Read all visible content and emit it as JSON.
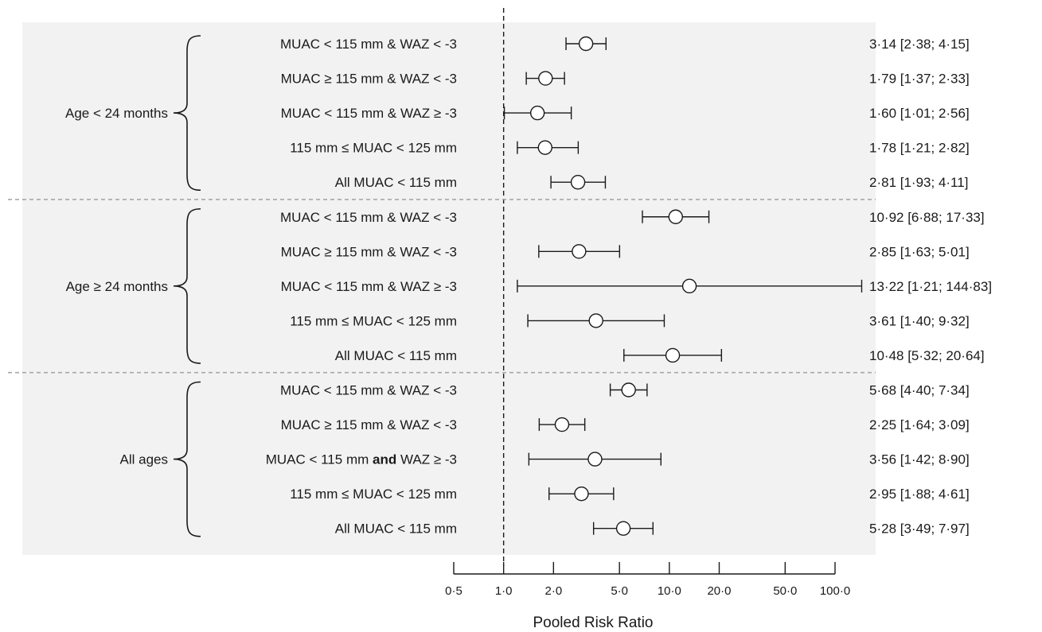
{
  "chart_data": {
    "type": "forest",
    "xlabel": "Pooled Risk Ratio",
    "x_scale": "log",
    "xlim": [
      0.5,
      100
    ],
    "ticks": [
      {
        "v": 0.5,
        "label": "0·5"
      },
      {
        "v": 1,
        "label": "1·0"
      },
      {
        "v": 2,
        "label": "2·0"
      },
      {
        "v": 5,
        "label": "5·0"
      },
      {
        "v": 10,
        "label": "10·0"
      },
      {
        "v": 20,
        "label": "20·0"
      },
      {
        "v": 50,
        "label": "50·0"
      },
      {
        "v": 100,
        "label": "100·0"
      }
    ],
    "reference_line": 1,
    "groups": [
      {
        "label": "Age < 24 months",
        "rows": [
          {
            "label": "MUAC < 115 mm & WAZ < -3",
            "rr": 3.14,
            "lo": 2.38,
            "hi": 4.15,
            "text": "3·14 [2·38; 4·15]"
          },
          {
            "label": "MUAC ≥ 115 mm & WAZ < -3",
            "rr": 1.79,
            "lo": 1.37,
            "hi": 2.33,
            "text": "1·79 [1·37; 2·33]"
          },
          {
            "label": "MUAC < 115 mm & WAZ ≥ -3",
            "rr": 1.6,
            "lo": 1.01,
            "hi": 2.56,
            "text": "1·60 [1·01; 2·56]"
          },
          {
            "label": "115 mm ≤ MUAC < 125 mm",
            "rr": 1.78,
            "lo": 1.21,
            "hi": 2.82,
            "text": "1·78 [1·21; 2·82]"
          },
          {
            "label": "All MUAC < 115 mm",
            "rr": 2.81,
            "lo": 1.93,
            "hi": 4.11,
            "text": "2·81 [1·93; 4·11]"
          }
        ]
      },
      {
        "label": "Age ≥ 24 months",
        "rows": [
          {
            "label": "MUAC < 115 mm & WAZ < -3",
            "rr": 10.92,
            "lo": 6.88,
            "hi": 17.33,
            "text": "10·92 [6·88; 17·33]"
          },
          {
            "label": "MUAC ≥ 115 mm & WAZ < -3",
            "rr": 2.85,
            "lo": 1.63,
            "hi": 5.01,
            "text": "2·85 [1·63; 5·01]"
          },
          {
            "label": "MUAC < 115 mm & WAZ ≥ -3",
            "rr": 13.22,
            "lo": 1.21,
            "hi": 144.83,
            "text": "13·22 [1·21; 144·83]"
          },
          {
            "label": "115 mm ≤ MUAC < 125 mm",
            "rr": 3.61,
            "lo": 1.4,
            "hi": 9.32,
            "text": "3·61 [1·40; 9·32]"
          },
          {
            "label": "All MUAC < 115 mm",
            "rr": 10.48,
            "lo": 5.32,
            "hi": 20.64,
            "text": "10·48 [5·32; 20·64]"
          }
        ]
      },
      {
        "label": "All ages",
        "rows": [
          {
            "label": "MUAC < 115 mm & WAZ < -3",
            "rr": 5.68,
            "lo": 4.4,
            "hi": 7.34,
            "text": "5·68 [4·40; 7·34]"
          },
          {
            "label": "MUAC ≥ 115 mm & WAZ < -3",
            "rr": 2.25,
            "lo": 1.64,
            "hi": 3.09,
            "text": "2·25 [1·64; 3·09]"
          },
          {
            "label": "MUAC < 115 mm and WAZ ≥ -3",
            "label_parts": [
              "MUAC < 115 mm ",
              "and",
              " WAZ ≥ -3"
            ],
            "bold_part": 1,
            "rr": 3.56,
            "lo": 1.42,
            "hi": 8.9,
            "text": "3·56 [1·42; 8·90]"
          },
          {
            "label": "115 mm ≤ MUAC < 125 mm",
            "rr": 2.95,
            "lo": 1.88,
            "hi": 4.61,
            "text": "2·95 [1·88; 4·61]"
          },
          {
            "label": "All MUAC < 115 mm",
            "rr": 5.28,
            "lo": 3.49,
            "hi": 7.97,
            "text": "5·28 [3·49; 7·97]"
          }
        ]
      }
    ]
  }
}
